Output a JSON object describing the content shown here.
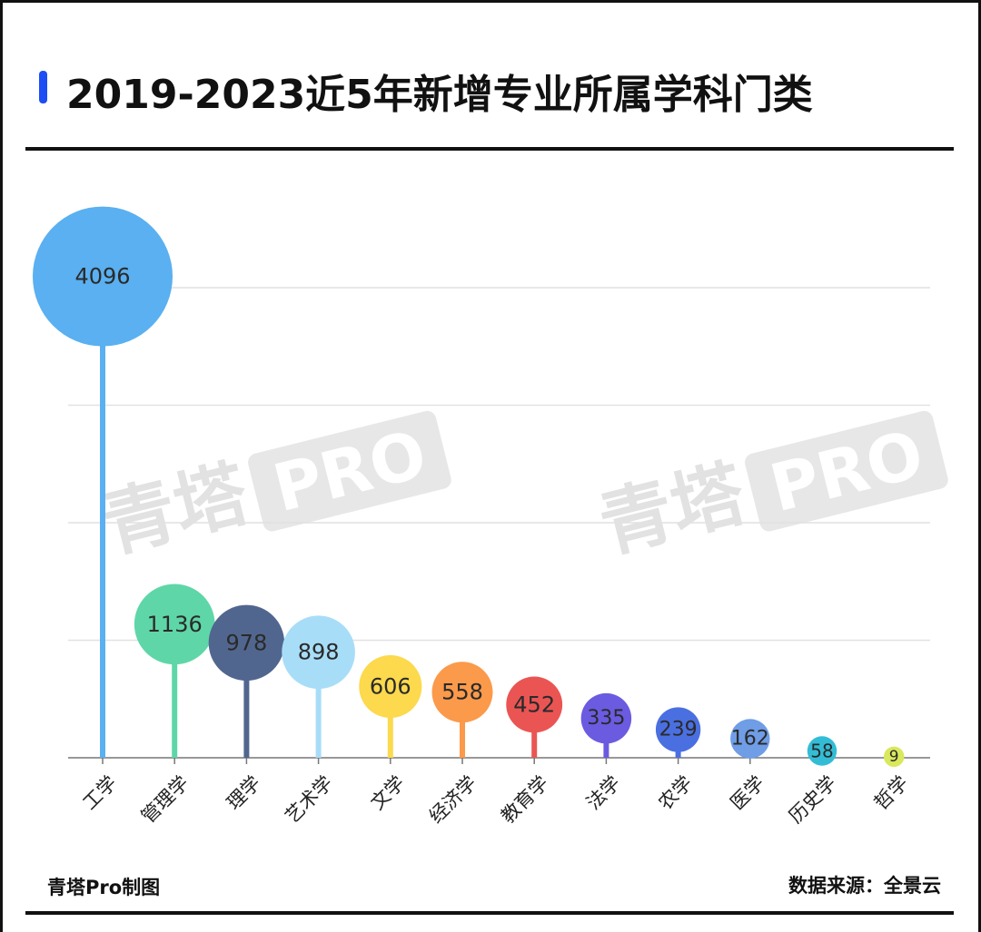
{
  "header": {
    "title": "2019-2023近5年新增专业所属学科门类"
  },
  "watermark": {
    "text": "青塔",
    "pro": "PRO"
  },
  "footer": {
    "left": "青塔Pro制图",
    "right": "数据来源：全景云"
  },
  "chart_data": {
    "type": "bar",
    "style": "lollipop",
    "title": "2019-2023近5年新增专业所属学科门类",
    "xlabel": "",
    "ylabel": "",
    "ylim": [
      0,
      4000
    ],
    "grid": true,
    "categories": [
      "工学",
      "管理学",
      "理学",
      "艺术学",
      "文学",
      "经济学",
      "教育学",
      "法学",
      "农学",
      "医学",
      "历史学",
      "哲学"
    ],
    "values": [
      4096,
      1136,
      978,
      898,
      606,
      558,
      452,
      335,
      239,
      162,
      58,
      9
    ],
    "colors": [
      "#5ab0f0",
      "#5fd6a8",
      "#51668f",
      "#a8ddf8",
      "#fcd94d",
      "#fb9a4b",
      "#ea5553",
      "#6b5be0",
      "#4a6fe0",
      "#6f9de6",
      "#33bcd6",
      "#d9e85c"
    ]
  }
}
